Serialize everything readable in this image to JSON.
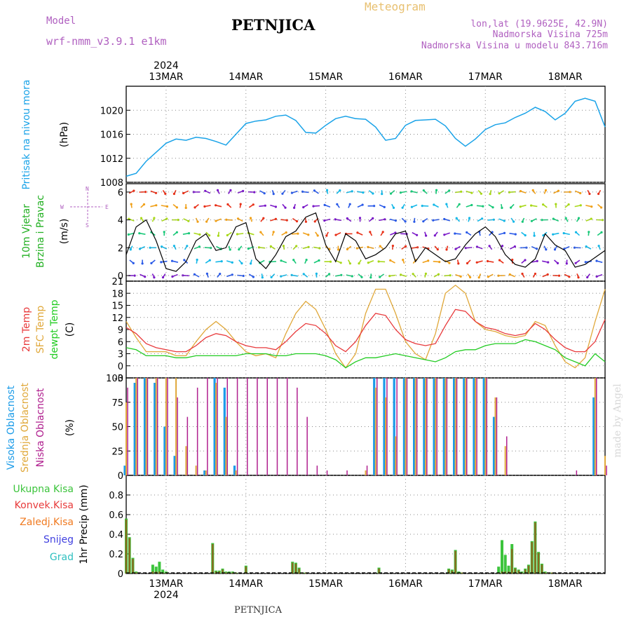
{
  "header": {
    "model_label": "Model",
    "model_name": "wrf-nmm_v3.9.1 e1km",
    "station_title": "PETNJICA",
    "product_title": "Meteogram",
    "lonlat": "lon,lat (19.9625E, 42.9N)",
    "elevation": "Nadmorska Visina 725m",
    "model_elevation": "Nadmorska Visina u modelu 843.716m"
  },
  "time_axis": {
    "year": "2024",
    "days": [
      "13MAR",
      "14MAR",
      "15MAR",
      "16MAR",
      "17MAR",
      "18MAR"
    ]
  },
  "footer_station": "PETNJICA",
  "credit": "made by Angel",
  "colors": {
    "pressure": "#1aa3e8",
    "t2m": "#e8393b",
    "tsfc": "#e0a83a",
    "dewpt": "#22cc22",
    "high_cloud": "#1a9be8",
    "mid_cloud": "#e0a83a",
    "low_cloud": "#b0208f",
    "total_precip": "#3cc43c",
    "conv_precip": "#e83b3b",
    "frozen_precip": "#f07a20",
    "snow": "#4040e0",
    "graupel": "#30c0c0"
  },
  "chart_data": [
    {
      "type": "line",
      "panel": "pressure",
      "ylabel_main": "Pritisak na nivou mora",
      "unit": "(hPa)",
      "ylim": [
        1008,
        1024
      ],
      "yticks": [
        1008,
        1012,
        1016,
        1020
      ],
      "x_hours": [
        0,
        3,
        6,
        9,
        12,
        15,
        18,
        21,
        24,
        27,
        30,
        33,
        36,
        39,
        42,
        45,
        48,
        51,
        54,
        57,
        60,
        63,
        66,
        69,
        72,
        75,
        78,
        81,
        84,
        87,
        90,
        93,
        96,
        99,
        102,
        105,
        108,
        111,
        114,
        117,
        120,
        123,
        126,
        129,
        132,
        135,
        138,
        141,
        144
      ],
      "series": [
        {
          "values": [
            1009,
            1009.5,
            1011.5,
            1013,
            1014.5,
            1015.2,
            1015,
            1015.5,
            1015.3,
            1014.8,
            1014.2,
            1016,
            1017.8,
            1018.2,
            1018.4,
            1019,
            1019.2,
            1018.3,
            1016.3,
            1016.2,
            1017.5,
            1018.6,
            1019,
            1018.6,
            1018.5,
            1017.2,
            1015,
            1015.3,
            1017.5,
            1018.3,
            1018.4,
            1018.5,
            1017.4,
            1015.3,
            1014,
            1015.2,
            1016.8,
            1017.6,
            1017.9,
            1018.8,
            1019.5,
            1020.5,
            1019.8,
            1018.4,
            1019.5,
            1021.5,
            1022,
            1021.5,
            1017.2
          ]
        }
      ]
    },
    {
      "type": "line",
      "panel": "wind",
      "ylabel_main": "10m Vjetar",
      "ylabel_sub": "Brzina i Pravac",
      "unit": "(m/s)",
      "compass": {
        "n": "N",
        "s": "S",
        "e": "E",
        "w": "W"
      },
      "ylim": [
        -0.4,
        6.6
      ],
      "yticks": [
        0,
        2,
        4,
        6
      ],
      "x_hours": [
        0,
        3,
        6,
        9,
        12,
        15,
        18,
        21,
        24,
        27,
        30,
        33,
        36,
        39,
        42,
        45,
        48,
        51,
        54,
        57,
        60,
        63,
        66,
        69,
        72,
        75,
        78,
        81,
        84,
        87,
        90,
        93,
        96,
        99,
        102,
        105,
        108,
        111,
        114,
        117,
        120,
        123,
        126,
        129,
        132,
        135,
        138,
        141,
        144
      ],
      "series": [
        {
          "values": [
            1.5,
            3.5,
            4,
            2.5,
            0.5,
            0.3,
            1,
            2.5,
            3,
            1.8,
            2,
            3.5,
            3.8,
            1.2,
            0.5,
            1.5,
            2.8,
            3.2,
            4.2,
            4.5,
            2.2,
            1,
            3,
            2.5,
            1.2,
            1.5,
            2,
            3,
            3.2,
            1,
            2,
            1.5,
            1,
            1.2,
            2.2,
            3,
            3.5,
            2.8,
            1.5,
            0.8,
            0.6,
            1.2,
            3,
            2.2,
            1.8,
            0.6,
            0.8,
            1.3,
            1.8
          ]
        }
      ]
    },
    {
      "type": "line",
      "panel": "temperature",
      "ylabel_t2m": "2m Temp",
      "ylabel_sfc": "SFC Temp",
      "ylabel_dew": "dewpt Temp",
      "unit": "(C)",
      "ylim": [
        -3,
        21
      ],
      "yticks": [
        -3,
        0,
        3,
        6,
        9,
        12,
        15,
        18,
        21
      ],
      "x_hours": [
        0,
        3,
        6,
        9,
        12,
        15,
        18,
        21,
        24,
        27,
        30,
        33,
        36,
        39,
        42,
        45,
        48,
        51,
        54,
        57,
        60,
        63,
        66,
        69,
        72,
        75,
        78,
        81,
        84,
        87,
        90,
        93,
        96,
        99,
        102,
        105,
        108,
        111,
        114,
        117,
        120,
        123,
        126,
        129,
        132,
        135,
        138,
        141,
        144
      ],
      "series": [
        {
          "name": "2m Temp",
          "values": [
            9.5,
            8,
            5.5,
            4.5,
            4,
            3.5,
            3.5,
            5,
            7,
            8,
            7.5,
            6,
            5,
            4.5,
            4.5,
            4,
            6,
            8.5,
            10.5,
            10,
            8,
            5,
            3.5,
            6,
            10,
            13,
            12.5,
            9,
            6.5,
            5.5,
            5,
            5.5,
            10,
            14,
            13.5,
            11,
            9.5,
            9,
            8,
            7.5,
            8,
            10.5,
            9,
            6.5,
            4.5,
            3.5,
            3.5,
            6,
            11.5
          ]
        },
        {
          "name": "SFC Temp",
          "values": [
            11,
            7,
            3.5,
            3.5,
            3.5,
            2.5,
            2.5,
            6,
            9,
            11,
            9,
            6,
            3.5,
            2.5,
            3,
            2,
            8,
            13,
            16,
            14,
            9,
            3,
            -0.5,
            3,
            13,
            19,
            19,
            13,
            6,
            3,
            1.5,
            8,
            18,
            20,
            18,
            11,
            9,
            8.5,
            7.5,
            7,
            7.5,
            11,
            10,
            5,
            1,
            -0.5,
            2,
            11,
            19
          ]
        },
        {
          "name": "dewpt Temp",
          "values": [
            4.5,
            4,
            2.5,
            2.5,
            2.5,
            2,
            2,
            2.5,
            2.5,
            2.5,
            2.5,
            2.5,
            3,
            3,
            3,
            2.5,
            2.5,
            3,
            3,
            3,
            2.5,
            1.5,
            -0.5,
            1,
            2,
            2,
            2.5,
            3,
            2.5,
            2,
            1.5,
            1,
            2,
            3.5,
            4,
            4,
            5,
            5.5,
            5.5,
            5.5,
            6.5,
            6,
            5,
            4,
            2,
            1,
            0,
            3,
            1
          ]
        }
      ]
    },
    {
      "type": "bar",
      "panel": "clouds",
      "ylabel_high": "Visoka Oblacnost",
      "ylabel_mid": "Srednja Oblacnost",
      "ylabel_low": "Niska Oblacnost",
      "unit": "(%)",
      "ylim": [
        0,
        100
      ],
      "yticks": [
        0,
        25,
        50,
        75,
        100
      ],
      "x_hours": [
        0,
        3,
        6,
        9,
        12,
        15,
        18,
        21,
        24,
        27,
        30,
        33,
        36,
        39,
        42,
        45,
        48,
        51,
        54,
        57,
        60,
        63,
        66,
        69,
        72,
        75,
        78,
        81,
        84,
        87,
        90,
        93,
        96,
        99,
        102,
        105,
        108,
        111,
        114,
        117,
        120,
        123,
        126,
        129,
        132,
        135,
        138,
        141,
        144
      ],
      "series": [
        {
          "name": "Visoka Oblacnost",
          "values": [
            10,
            95,
            100,
            95,
            50,
            20,
            0,
            0,
            5,
            100,
            90,
            10,
            0,
            0,
            0,
            0,
            0,
            0,
            0,
            0,
            0,
            0,
            0,
            0,
            0,
            100,
            100,
            100,
            100,
            100,
            100,
            100,
            100,
            100,
            100,
            100,
            100,
            60,
            0,
            0,
            0,
            0,
            0,
            0,
            0,
            0,
            0,
            80,
            0
          ]
        },
        {
          "name": "Srednja Oblacnost",
          "values": [
            75,
            100,
            100,
            100,
            100,
            100,
            30,
            10,
            5,
            95,
            60,
            5,
            0,
            0,
            0,
            0,
            0,
            0,
            0,
            0,
            0,
            0,
            0,
            0,
            5,
            90,
            80,
            40,
            100,
            100,
            100,
            100,
            100,
            100,
            100,
            100,
            100,
            80,
            30,
            0,
            0,
            0,
            0,
            0,
            0,
            0,
            0,
            100,
            20
          ]
        },
        {
          "name": "Niska Oblacnost",
          "values": [
            90,
            100,
            100,
            100,
            100,
            80,
            60,
            90,
            100,
            100,
            100,
            100,
            100,
            100,
            100,
            100,
            100,
            90,
            60,
            10,
            5,
            0,
            5,
            0,
            10,
            100,
            100,
            100,
            100,
            100,
            100,
            100,
            100,
            100,
            100,
            100,
            100,
            80,
            40,
            0,
            0,
            0,
            0,
            0,
            0,
            5,
            0,
            100,
            10
          ]
        }
      ]
    },
    {
      "type": "bar",
      "panel": "precipitation",
      "ylabel_total": "Ukupna Kisa",
      "ylabel_conv": "Konvek.Kisa",
      "ylabel_frozen": "Zaledj.Kisa",
      "ylabel_snow": "Snijeg",
      "ylabel_graupel": "Grad",
      "unit": "1hr Precip (mm)",
      "ylim": [
        0,
        1.0
      ],
      "yticks": [
        0,
        0.2,
        0.4,
        0.6,
        0.8
      ],
      "x_hours": [
        0,
        1,
        2,
        3,
        8,
        9,
        10,
        11,
        12,
        26,
        27,
        28,
        29,
        30,
        31,
        32,
        33,
        36,
        50,
        51,
        52,
        53,
        54,
        76,
        97,
        98,
        99,
        100,
        101,
        112,
        113,
        114,
        115,
        116,
        117,
        118,
        119,
        120,
        121,
        122,
        123,
        124,
        125,
        126,
        127,
        128
      ],
      "series": [
        {
          "name": "Ukupna Kisa",
          "values": [
            0.56,
            0.37,
            0.16,
            0.02,
            0.09,
            0.07,
            0.12,
            0.04,
            0.02,
            0.31,
            0.03,
            0.03,
            0.05,
            0.02,
            0.02,
            0.02,
            0.01,
            0.08,
            0.12,
            0.11,
            0.06,
            0.01,
            0.01,
            0.06,
            0.05,
            0.04,
            0.24,
            0.02,
            0.01,
            0.07,
            0.34,
            0.19,
            0.08,
            0.3,
            0.06,
            0.04,
            0.02,
            0.05,
            0.09,
            0.33,
            0.53,
            0.22,
            0.1,
            0.02,
            0.01,
            0.01
          ]
        },
        {
          "name": "Konvek.Kisa",
          "values": [
            0.55,
            0.36,
            0.15,
            0.01,
            0.02,
            0.02,
            0.02,
            0.01,
            0.01,
            0.3,
            0.02,
            0.02,
            0.04,
            0.01,
            0.01,
            0.01,
            0.01,
            0.07,
            0.11,
            0.1,
            0.05,
            0.01,
            0.01,
            0.05,
            0.04,
            0.03,
            0.23,
            0.01,
            0.01,
            0.01,
            0.02,
            0.02,
            0.02,
            0.25,
            0.05,
            0.03,
            0.01,
            0.04,
            0.08,
            0.32,
            0.52,
            0.21,
            0.09,
            0.01,
            0.01,
            0.01
          ]
        }
      ]
    }
  ]
}
